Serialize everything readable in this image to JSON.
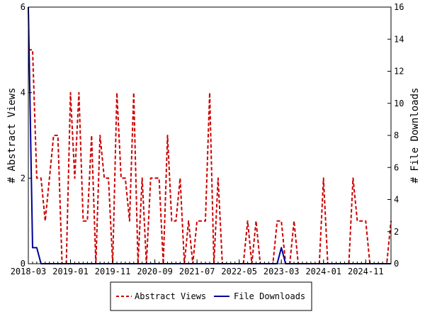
{
  "chart_data": {
    "type": "line",
    "x_range": [
      "2018-03",
      "2025-05"
    ],
    "x_ticks": [
      "2018-03",
      "2019-01",
      "2019-11",
      "2020-09",
      "2021-07",
      "2022-05",
      "2023-03",
      "2024-01",
      "2024-11"
    ],
    "y_left": {
      "label": "# Abstract Views",
      "ylim": [
        0,
        6
      ],
      "ticks": [
        "0",
        "2",
        "4",
        "6"
      ]
    },
    "y_right": {
      "label": "# File Downloads",
      "ylim": [
        0,
        16
      ],
      "ticks": [
        "0",
        "2",
        "4",
        "6",
        "8",
        "10",
        "12",
        "14",
        "16"
      ]
    },
    "legend_position": "bottom",
    "grid": false,
    "series": [
      {
        "name": "Abstract Views",
        "axis": "left",
        "style": "dashed",
        "color": "#cc0000",
        "x": [
          "2018-03",
          "2018-04",
          "2018-05",
          "2018-06",
          "2018-07",
          "2018-08",
          "2018-09",
          "2018-10",
          "2018-11",
          "2018-12",
          "2019-01",
          "2019-02",
          "2019-03",
          "2019-04",
          "2019-05",
          "2019-06",
          "2019-07",
          "2019-08",
          "2019-09",
          "2019-10",
          "2019-11",
          "2019-12",
          "2020-01",
          "2020-02",
          "2020-03",
          "2020-04",
          "2020-05",
          "2020-06",
          "2020-07",
          "2020-08",
          "2020-09",
          "2020-10",
          "2020-11",
          "2020-12",
          "2021-01",
          "2021-02",
          "2021-03",
          "2021-04",
          "2021-05",
          "2021-06",
          "2021-07",
          "2021-08",
          "2021-09",
          "2021-10",
          "2021-11",
          "2021-12",
          "2022-01",
          "2022-02",
          "2022-03",
          "2022-04",
          "2022-05",
          "2022-06",
          "2022-07",
          "2022-08",
          "2022-09",
          "2022-10",
          "2022-11",
          "2022-12",
          "2023-01",
          "2023-02",
          "2023-03",
          "2023-04",
          "2023-05",
          "2023-06",
          "2023-07",
          "2023-08",
          "2023-09",
          "2023-10",
          "2023-11",
          "2023-12",
          "2024-01",
          "2024-02",
          "2024-03",
          "2024-04",
          "2024-05",
          "2024-06",
          "2024-07",
          "2024-08",
          "2024-09",
          "2024-10",
          "2024-11",
          "2024-12",
          "2025-01",
          "2025-02",
          "2025-03",
          "2025-04",
          "2025-05"
        ],
        "values": [
          5,
          5,
          2,
          2,
          1,
          2,
          3,
          3,
          0,
          0,
          4,
          2,
          4,
          1,
          1,
          3,
          0,
          3,
          2,
          2,
          0,
          4,
          2,
          2,
          1,
          4,
          0,
          2,
          0,
          2,
          2,
          2,
          0,
          3,
          1,
          1,
          2,
          0,
          1,
          0,
          1,
          1,
          1,
          4,
          0,
          2,
          0,
          0,
          0,
          0,
          0,
          0,
          1,
          0,
          1,
          0,
          0,
          0,
          0,
          1,
          1,
          0,
          0,
          1,
          0,
          0,
          0,
          0,
          0,
          0,
          2,
          0,
          0,
          0,
          0,
          0,
          0,
          2,
          1,
          1,
          1,
          0,
          0,
          0,
          0,
          0,
          1
        ]
      },
      {
        "name": "File Downloads",
        "axis": "right",
        "style": "solid",
        "color": "#000099",
        "x": [
          "2018-03",
          "2018-04",
          "2018-05",
          "2018-06",
          "2018-07",
          "2018-08",
          "2018-09",
          "2018-10",
          "2018-11",
          "2018-12",
          "2019-01",
          "2019-02",
          "2019-03",
          "2019-04",
          "2019-05",
          "2019-06",
          "2019-07",
          "2019-08",
          "2019-09",
          "2019-10",
          "2019-11",
          "2019-12",
          "2020-01",
          "2020-02",
          "2020-03",
          "2020-04",
          "2020-05",
          "2020-06",
          "2020-07",
          "2020-08",
          "2020-09",
          "2020-10",
          "2020-11",
          "2020-12",
          "2021-01",
          "2021-02",
          "2021-03",
          "2021-04",
          "2021-05",
          "2021-06",
          "2021-07",
          "2021-08",
          "2021-09",
          "2021-10",
          "2021-11",
          "2021-12",
          "2022-01",
          "2022-02",
          "2022-03",
          "2022-04",
          "2022-05",
          "2022-06",
          "2022-07",
          "2022-08",
          "2022-09",
          "2022-10",
          "2022-11",
          "2022-12",
          "2023-01",
          "2023-02",
          "2023-03",
          "2023-04",
          "2023-05",
          "2023-06",
          "2023-07",
          "2023-08",
          "2023-09",
          "2023-10",
          "2023-11",
          "2023-12",
          "2024-01",
          "2024-02",
          "2024-03",
          "2024-04",
          "2024-05",
          "2024-06",
          "2024-07",
          "2024-08",
          "2024-09",
          "2024-10",
          "2024-11",
          "2024-12",
          "2025-01",
          "2025-02",
          "2025-03",
          "2025-04",
          "2025-05"
        ],
        "values": [
          16,
          1,
          1,
          0,
          0,
          0,
          0,
          0,
          0,
          0,
          0,
          0,
          0,
          0,
          0,
          0,
          0,
          0,
          0,
          0,
          0,
          0,
          0,
          0,
          0,
          0,
          0,
          0,
          0,
          0,
          0,
          0,
          0,
          0,
          0,
          0,
          0,
          0,
          0,
          0,
          0,
          0,
          0,
          0,
          0,
          0,
          0,
          0,
          0,
          0,
          0,
          0,
          0,
          0,
          0,
          0,
          0,
          0,
          0,
          0,
          1,
          0,
          0,
          0,
          0,
          0,
          0,
          0,
          0,
          0,
          0,
          0,
          0,
          0,
          0,
          0,
          0,
          0,
          0,
          0,
          0,
          0,
          0,
          0,
          0,
          0,
          0
        ]
      }
    ]
  }
}
